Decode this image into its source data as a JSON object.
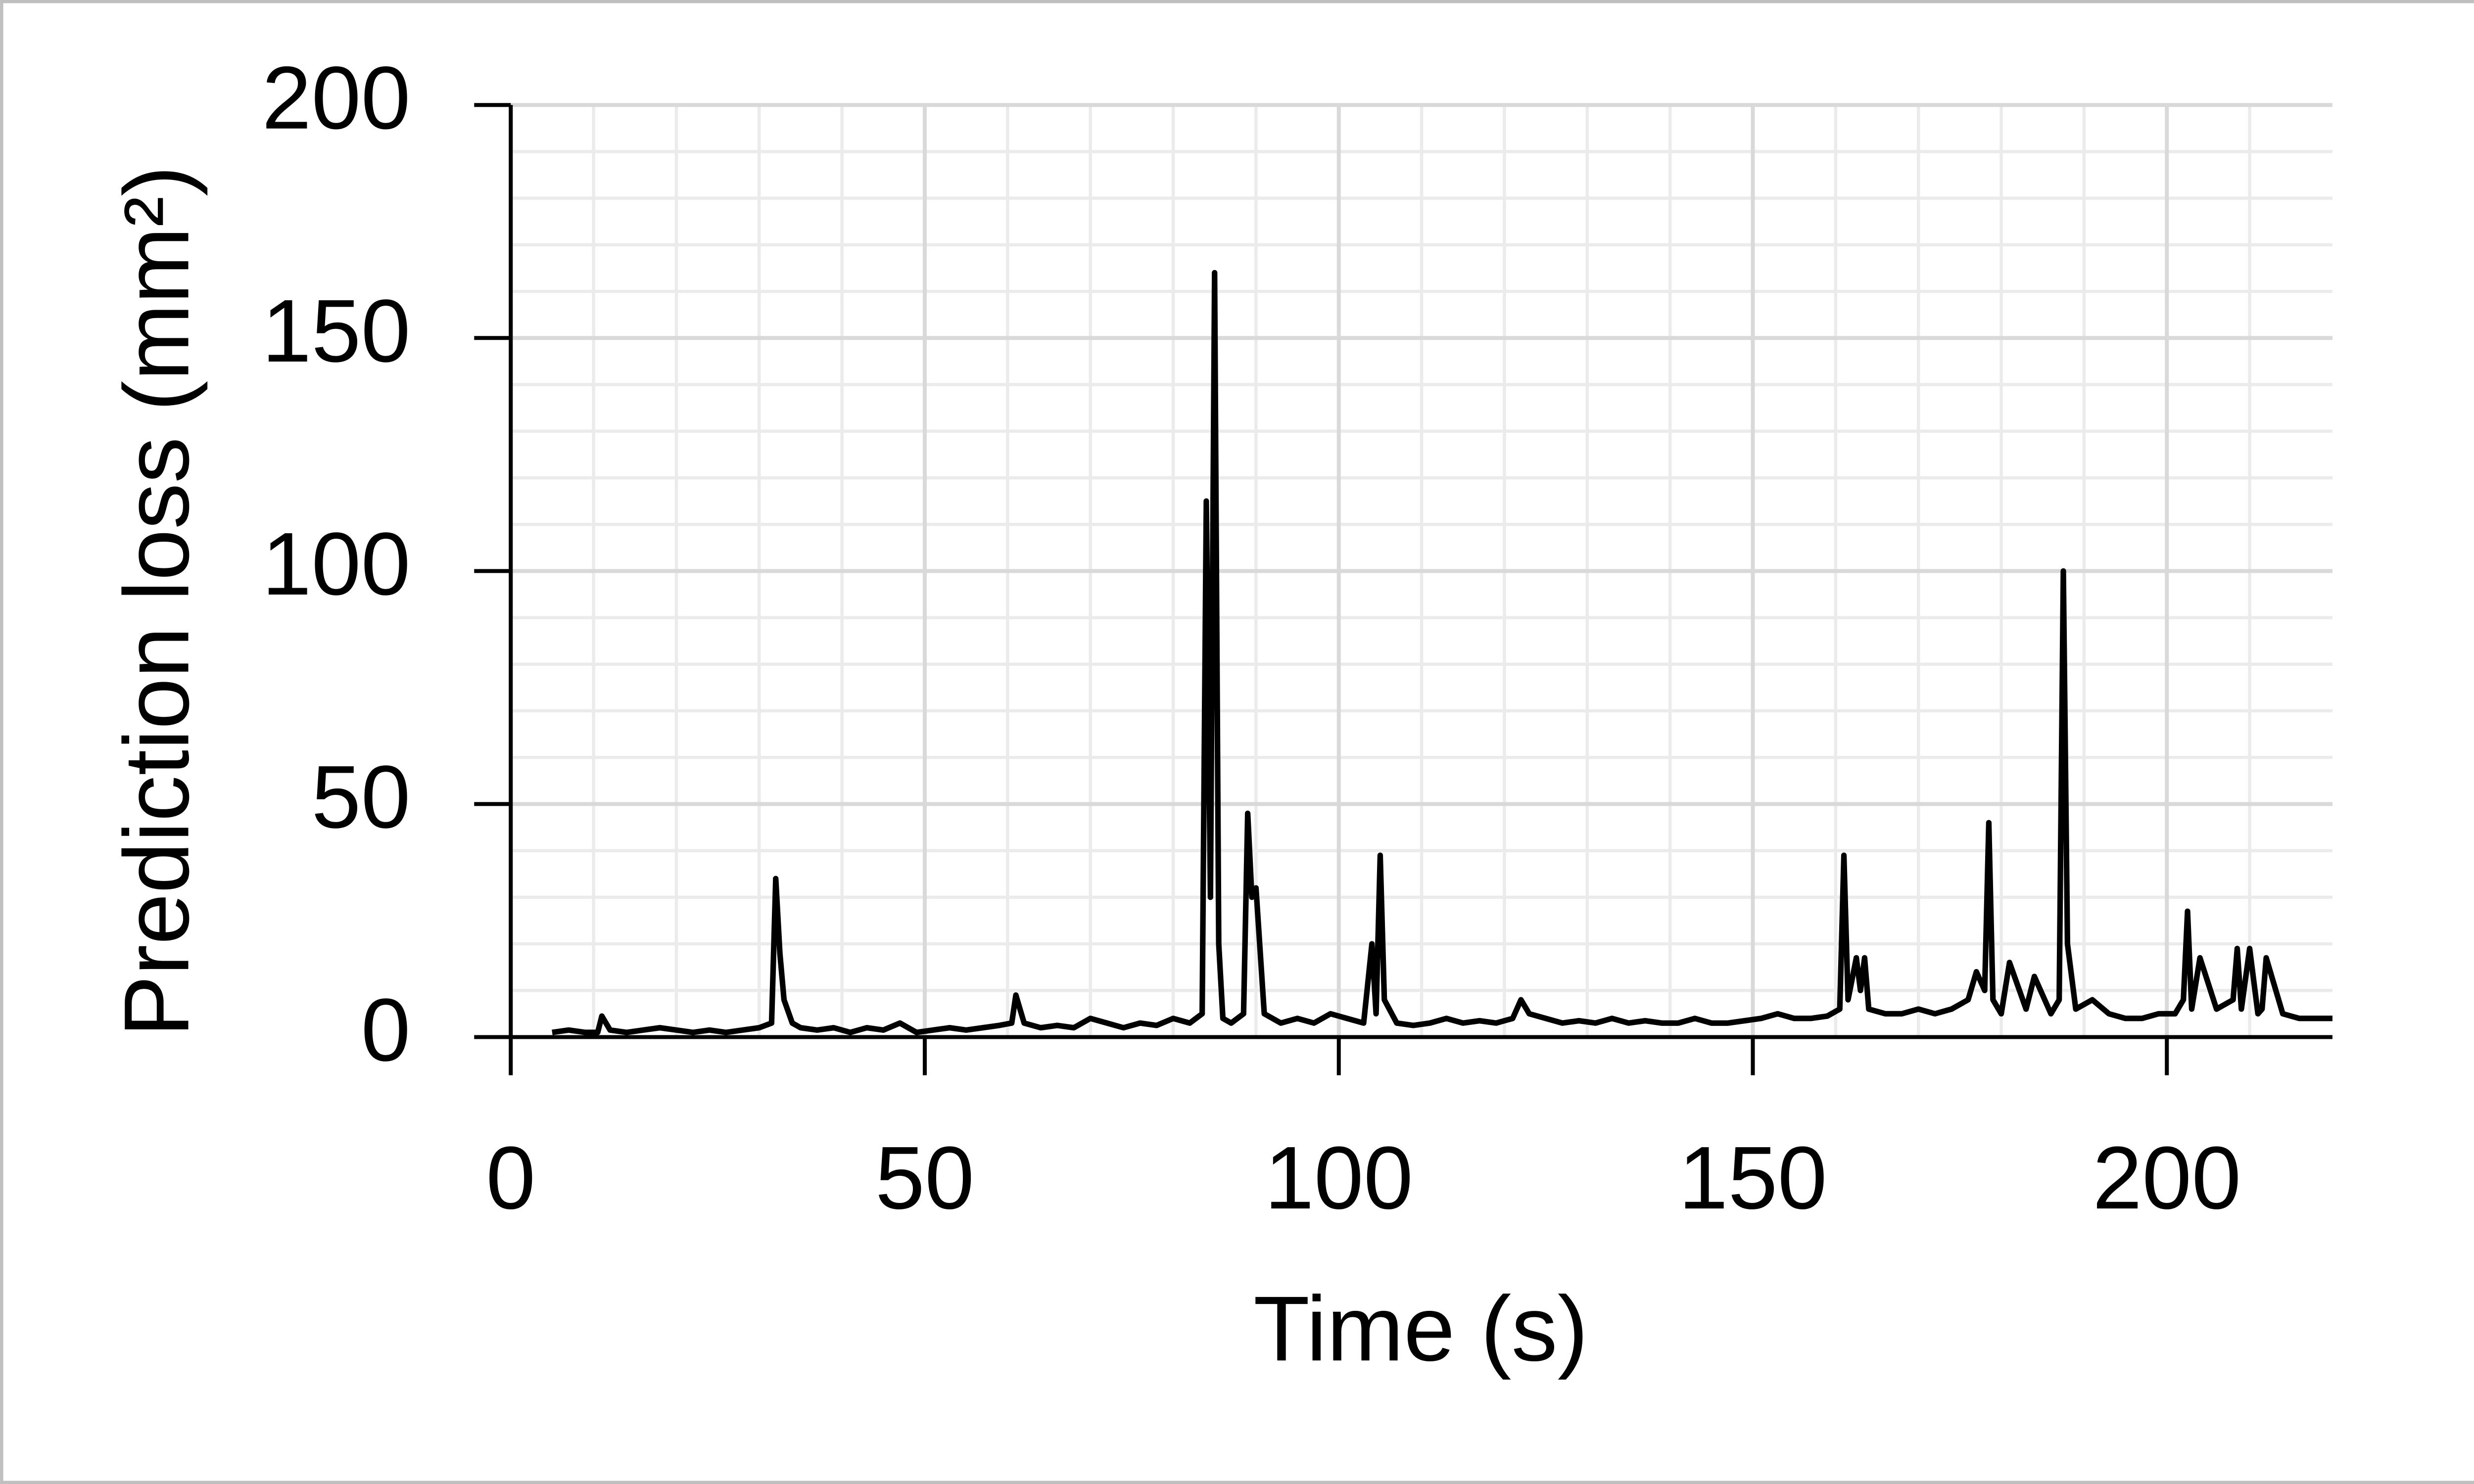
{
  "chart_data": {
    "type": "line",
    "x_label": "Time (s)",
    "y_label": "Prediction loss (mm²)",
    "x": [
      5,
      7,
      9,
      10.5,
      11,
      12,
      14,
      16,
      18,
      20,
      22,
      24,
      26,
      28,
      30,
      31.5,
      32,
      32.5,
      33,
      34,
      35,
      37,
      39,
      41,
      43,
      45,
      47,
      49,
      51,
      53,
      55,
      57,
      59,
      60.5,
      61,
      62,
      64,
      66,
      68,
      70,
      72,
      74,
      76,
      78,
      80,
      82,
      83.5,
      84,
      84.5,
      85,
      85.5,
      86,
      87,
      88.5,
      89,
      89.5,
      90,
      91,
      93,
      95,
      97,
      99,
      101,
      103,
      104,
      104.5,
      105,
      105.5,
      107,
      109,
      111,
      113,
      115,
      117,
      119,
      121,
      122,
      123,
      125,
      127,
      129,
      131,
      133,
      135,
      137,
      139,
      141,
      143,
      145,
      147,
      149,
      151,
      153,
      155,
      157,
      159,
      160.5,
      161,
      161.5,
      162.5,
      163,
      163.5,
      164,
      166,
      168,
      170,
      172,
      174,
      176,
      177,
      178,
      178.5,
      179,
      180,
      181,
      183,
      184,
      186,
      187,
      187.5,
      188,
      189,
      191,
      193,
      195,
      197,
      199,
      201,
      202,
      202.5,
      203,
      204,
      206,
      208,
      208.5,
      209,
      210,
      211,
      211.5,
      212,
      214,
      216,
      218,
      220
    ],
    "series": [
      {
        "name": "Prediction loss",
        "color": "#000000",
        "values": [
          1,
          1.5,
          1,
          1,
          4.5,
          1.5,
          1,
          1.5,
          2,
          1.5,
          1,
          1.5,
          1,
          1.5,
          2,
          3,
          34,
          18,
          8,
          3,
          2,
          1.5,
          2,
          1,
          2,
          1.5,
          3,
          1,
          1.5,
          2,
          1.5,
          2,
          2.5,
          3,
          9,
          3,
          2,
          2.5,
          2,
          4,
          3,
          2,
          3,
          2.5,
          4,
          3,
          5,
          115,
          30,
          164,
          20,
          4,
          3,
          5,
          48,
          30,
          32,
          5,
          3,
          4,
          3,
          5,
          4,
          3,
          20,
          5,
          39,
          8,
          3,
          2.5,
          3,
          4,
          3,
          3.5,
          3,
          4,
          8,
          5,
          4,
          3,
          3.5,
          3,
          4,
          3,
          3.5,
          3,
          3,
          4,
          3,
          3,
          3.5,
          4,
          5,
          4,
          4,
          4.5,
          6,
          39,
          8,
          17,
          10,
          17,
          6,
          5,
          5,
          6,
          5,
          6,
          8,
          14,
          10,
          46,
          8,
          5,
          16,
          6,
          13,
          5,
          8,
          100,
          20,
          6,
          8,
          5,
          4,
          4,
          5,
          5,
          8,
          27,
          6,
          17,
          6,
          8,
          19,
          6,
          19,
          5,
          6,
          17,
          5,
          4,
          4,
          4
        ]
      }
    ],
    "xlim": [
      0,
      220
    ],
    "ylim": [
      0,
      200
    ],
    "xticks": [
      0,
      50,
      100,
      150,
      200
    ],
    "yticks": [
      0,
      50,
      100,
      150,
      200
    ],
    "x_minor_ticks": [
      10,
      20,
      30,
      40,
      60,
      70,
      80,
      90,
      110,
      120,
      130,
      140,
      160,
      170,
      180,
      190,
      210
    ],
    "y_minor_ticks": [
      10,
      20,
      30,
      40,
      60,
      70,
      80,
      90,
      110,
      120,
      130,
      140,
      160,
      170,
      180,
      190
    ],
    "grid": true
  }
}
